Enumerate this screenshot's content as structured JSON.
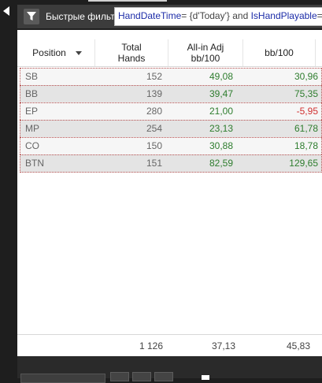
{
  "filter": {
    "label": "Быстрые фильт",
    "expr_part1": "HandDateTime",
    "expr_part2": "= {d'Today'} and ",
    "expr_part3": "IsHandPlayable",
    "expr_part4": "="
  },
  "table": {
    "columns": [
      "Position",
      "Total Hands",
      "All-in Adj bb/100",
      "bb/100"
    ],
    "rows": [
      {
        "position": "SB",
        "hands": "152",
        "adj": "49,08",
        "bb": "30,96",
        "adj_sign": "pos",
        "bb_sign": "pos"
      },
      {
        "position": "BB",
        "hands": "139",
        "adj": "39,47",
        "bb": "75,35",
        "adj_sign": "pos",
        "bb_sign": "pos"
      },
      {
        "position": "EP",
        "hands": "280",
        "adj": "21,00",
        "bb": "-5,95",
        "adj_sign": "pos",
        "bb_sign": "neg"
      },
      {
        "position": "MP",
        "hands": "254",
        "adj": "23,13",
        "bb": "61,78",
        "adj_sign": "pos",
        "bb_sign": "pos"
      },
      {
        "position": "CO",
        "hands": "150",
        "adj": "30,88",
        "bb": "18,78",
        "adj_sign": "pos",
        "bb_sign": "pos"
      },
      {
        "position": "BTN",
        "hands": "151",
        "adj": "82,59",
        "bb": "129,65",
        "adj_sign": "pos",
        "bb_sign": "pos"
      }
    ],
    "totals": {
      "hands": "1 126",
      "adj": "37,13",
      "bb": "45,83"
    }
  },
  "colors": {
    "positive": "#2e7d2e",
    "negative": "#d03030"
  },
  "icons": {
    "filter": "funnel-icon",
    "expand": "caret-left-icon",
    "sort": "chevron-down-icon"
  }
}
